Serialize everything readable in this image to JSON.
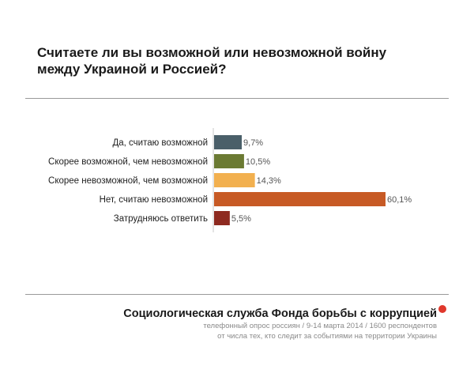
{
  "title": "Считаете ли вы возможной или невозможной войну между Украиной и Россией?",
  "chart_data": {
    "type": "bar",
    "orientation": "horizontal",
    "title": "",
    "categories": [
      "Да, считаю возможной",
      "Скорее возможной, чем невозможной",
      "Скорее невозможной, чем возможной",
      "Нет, считаю невозможной",
      "Затрудняюсь ответить"
    ],
    "values": [
      9.7,
      10.5,
      14.3,
      60.1,
      5.5
    ],
    "value_labels": [
      "9,7%",
      "10,5%",
      "14,3%",
      "60,1%",
      "5,5%"
    ],
    "colors": [
      "#4a5f69",
      "#6b7a33",
      "#f2b04f",
      "#c75a25",
      "#8e2a20"
    ],
    "xlim": [
      0,
      60.1
    ],
    "grid": false,
    "legend": "none"
  },
  "footer": {
    "organization": "Социологическая служба Фонда борьбы с коррупцией",
    "note_line1": "телефонный опрос россиян / 9-14 марта 2014 / 1600 респондентов",
    "note_line2": "от числа тех, кто следит за событиями на территории Украины",
    "accent_color": "#e0382c"
  }
}
